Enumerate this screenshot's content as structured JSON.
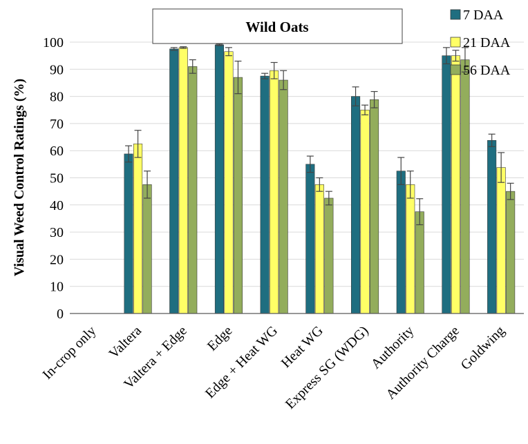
{
  "chart_data": {
    "type": "bar",
    "title": "Wild Oats",
    "xlabel": "",
    "ylabel": "Visual Weed Control Ratings (%)",
    "ylim": [
      0,
      100
    ],
    "yticks": [
      0,
      10,
      20,
      30,
      40,
      50,
      60,
      70,
      80,
      90,
      100
    ],
    "grid": true,
    "legend_position": "top-right",
    "categories": [
      "In-crop only",
      "Valtera",
      "Valtera + Edge",
      "Edge",
      "Edge + Heat WG",
      "Heat WG",
      "Express SG (WDG)",
      "Authority",
      "Authority Charge",
      "Goldwing"
    ],
    "series": [
      {
        "name": "7 DAA",
        "color": "#1f6e80",
        "values": [
          0,
          58.8,
          97.5,
          99,
          87.5,
          55,
          80,
          52.5,
          95,
          63.8
        ],
        "errors": [
          0,
          3,
          0.5,
          0.3,
          1,
          3,
          3.5,
          5,
          3,
          2.3
        ]
      },
      {
        "name": "21 DAA",
        "color": "#ffff66",
        "values": [
          0,
          62.5,
          98,
          96.5,
          89.5,
          47.5,
          75,
          47.5,
          95,
          53.8
        ],
        "errors": [
          0,
          5,
          0.3,
          1.5,
          3,
          2.5,
          1.8,
          5,
          2,
          5.5
        ]
      },
      {
        "name": "56 DAA",
        "color": "#93ad5c",
        "values": [
          0,
          47.5,
          91,
          87,
          86,
          42.5,
          78.8,
          37.5,
          93.5,
          45
        ],
        "errors": [
          0,
          5,
          2.5,
          6,
          3.5,
          2.5,
          3,
          4.8,
          4.5,
          3
        ]
      }
    ]
  }
}
